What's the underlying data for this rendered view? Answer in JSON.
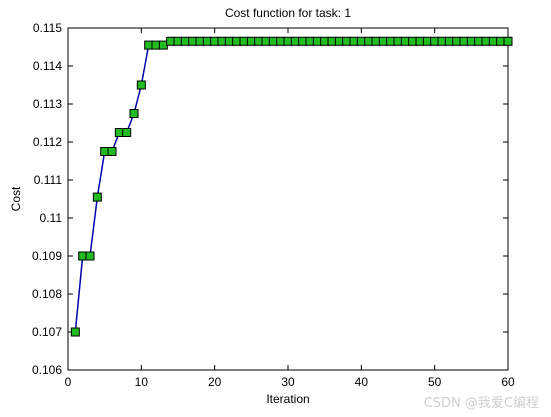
{
  "chart_data": {
    "type": "line",
    "title": "Cost function for task: 1",
    "xlabel": "Iteration",
    "ylabel": "Cost",
    "xlim": [
      0,
      60
    ],
    "ylim": [
      0.106,
      0.115
    ],
    "xticks": [
      0,
      10,
      20,
      30,
      40,
      50,
      60
    ],
    "yticks": [
      0.106,
      0.107,
      0.108,
      0.109,
      0.11,
      0.111,
      0.112,
      0.113,
      0.114,
      0.115
    ],
    "ytick_labels": [
      "0.106",
      "0.107",
      "0.108",
      "0.109",
      "0.11",
      "0.111",
      "0.112",
      "0.113",
      "0.114",
      "0.115"
    ],
    "grid": false,
    "line_color": "#0000aa",
    "marker_color": "#22bb22",
    "marker_edge": "#000000",
    "marker": "square",
    "x": [
      1,
      2,
      3,
      4,
      5,
      6,
      7,
      8,
      9,
      10,
      11,
      12,
      13,
      14,
      15,
      16,
      17,
      18,
      19,
      20,
      21,
      22,
      23,
      24,
      25,
      26,
      27,
      28,
      29,
      30,
      31,
      32,
      33,
      34,
      35,
      36,
      37,
      38,
      39,
      40,
      41,
      42,
      43,
      44,
      45,
      46,
      47,
      48,
      49,
      50,
      51,
      52,
      53,
      54,
      55,
      56,
      57,
      58,
      59,
      60
    ],
    "y": [
      0.107,
      0.109,
      0.109,
      0.11055,
      0.11175,
      0.11175,
      0.11225,
      0.11225,
      0.11275,
      0.1135,
      0.11455,
      0.11455,
      0.11455,
      0.11465,
      0.11465,
      0.11465,
      0.11465,
      0.11465,
      0.11465,
      0.11465,
      0.11465,
      0.11465,
      0.11465,
      0.11465,
      0.11465,
      0.11465,
      0.11465,
      0.11465,
      0.11465,
      0.11465,
      0.11465,
      0.11465,
      0.11465,
      0.11465,
      0.11465,
      0.11465,
      0.11465,
      0.11465,
      0.11465,
      0.11465,
      0.11465,
      0.11465,
      0.11465,
      0.11465,
      0.11465,
      0.11465,
      0.11465,
      0.11465,
      0.11465,
      0.11465,
      0.11465,
      0.11465,
      0.11465,
      0.11465,
      0.11465,
      0.11465,
      0.11465,
      0.11465,
      0.11465,
      0.11465
    ]
  },
  "watermark": "CSDN @我爱C编程"
}
